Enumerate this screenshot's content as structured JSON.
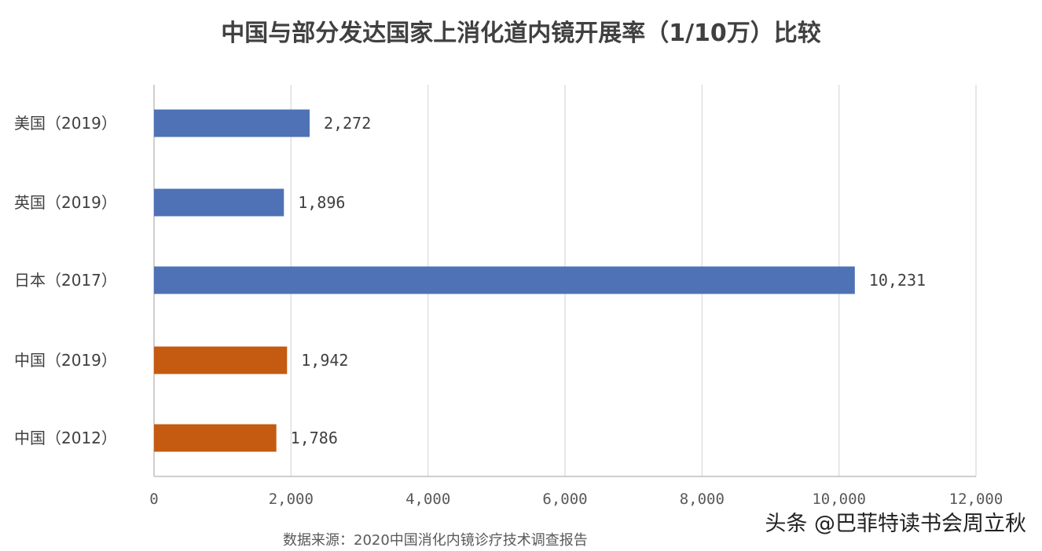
{
  "chart_data": {
    "type": "bar",
    "orientation": "horizontal",
    "title": "中国与部分发达国家上消化道内镜开展率（1/10万）比较",
    "categories": [
      "美国（2019）",
      "英国（2019）",
      "日本（2017）",
      "中国（2019）",
      "中国（2012）"
    ],
    "values": [
      2272,
      1896,
      10231,
      1942,
      1786
    ],
    "data_labels": [
      "2,272",
      "1,896",
      "10,231",
      "1,942",
      "1,786"
    ],
    "bar_colors": [
      "#4f71b6",
      "#4f71b6",
      "#4f71b6",
      "#c55a11",
      "#c55a11"
    ],
    "xlim": [
      0,
      12000
    ],
    "xticks": [
      0,
      2000,
      4000,
      6000,
      8000,
      10000,
      12000
    ],
    "xtick_labels": [
      "0",
      "2,000",
      "4,000",
      "6,000",
      "8,000",
      "10,000",
      "12,000"
    ],
    "grid": "vertical",
    "legend": "none",
    "source_note": "数据来源：2020中国消化内镜诊疗技术调查报告"
  },
  "watermark": "头条 @巴菲特读书会周立秋"
}
